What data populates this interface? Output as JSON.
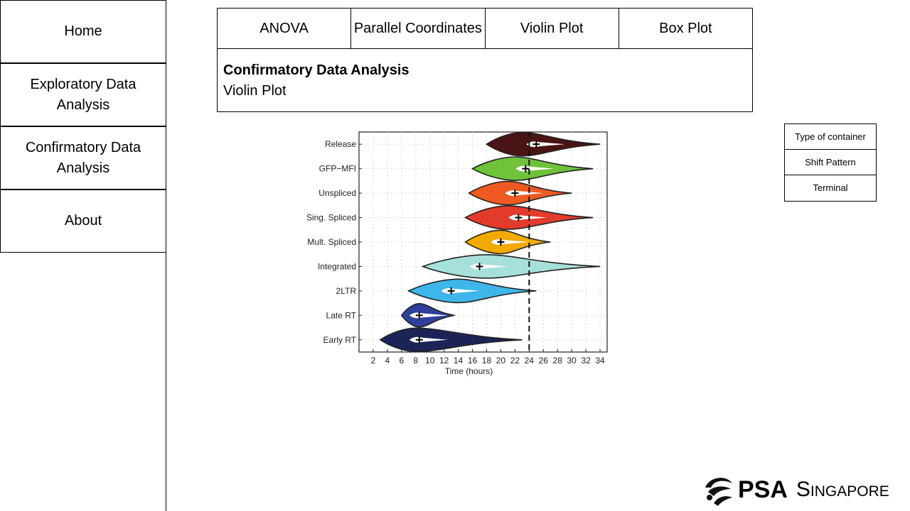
{
  "sidebar": {
    "items": [
      {
        "label": "Home"
      },
      {
        "label": "Exploratory Data Analysis"
      },
      {
        "label": "Confirmatory Data Analysis"
      },
      {
        "label": "About"
      }
    ]
  },
  "tabs": [
    {
      "label": "ANOVA"
    },
    {
      "label": "Parallel Coordinates"
    },
    {
      "label": "Violin Plot"
    },
    {
      "label": "Box Plot"
    }
  ],
  "header": {
    "title": "Confirmatory Data Analysis",
    "subtitle": "Violin Plot"
  },
  "filters": [
    {
      "label": "Type of container"
    },
    {
      "label": "Shift Pattern"
    },
    {
      "label": "Terminal"
    }
  ],
  "logo": {
    "brand": "PSA",
    "region": "Singapore"
  },
  "chart_data": {
    "type": "violin",
    "xlabel": "Time (hours)",
    "ylabel": "",
    "xlim": [
      0,
      35
    ],
    "xticks": [
      2,
      4,
      6,
      8,
      10,
      12,
      14,
      16,
      18,
      20,
      22,
      24,
      26,
      28,
      30,
      32,
      34
    ],
    "reference_line_x": 24,
    "grid": true,
    "series": [
      {
        "name": "Release",
        "color": "#4a1414",
        "min": 18,
        "max": 34,
        "mean": 25,
        "peak": 23
      },
      {
        "name": "GFP−MFI",
        "color": "#6fc23a",
        "min": 16,
        "max": 33,
        "mean": 23.5,
        "peak": 22
      },
      {
        "name": "Unspliced",
        "color": "#ef5a22",
        "min": 15.5,
        "max": 30,
        "mean": 22,
        "peak": 21
      },
      {
        "name": "Sing. Spliced",
        "color": "#e33b2b",
        "min": 15,
        "max": 33,
        "mean": 22.5,
        "peak": 21
      },
      {
        "name": "Mult. Spliced",
        "color": "#f2a900",
        "min": 15,
        "max": 27,
        "mean": 20,
        "peak": 20
      },
      {
        "name": "Integrated",
        "color": "#a6e0da",
        "min": 9,
        "max": 34,
        "mean": 17,
        "peak": 18
      },
      {
        "name": "2LTR",
        "color": "#3fb6ea",
        "min": 7,
        "max": 25,
        "mean": 13,
        "peak": 14
      },
      {
        "name": "Late RT",
        "color": "#2f3f9c",
        "min": 6,
        "max": 13.5,
        "mean": 8.5,
        "peak": 8.5
      },
      {
        "name": "Early RT",
        "color": "#1c2457",
        "min": 3,
        "max": 23,
        "mean": 8.5,
        "peak": 8
      }
    ]
  }
}
